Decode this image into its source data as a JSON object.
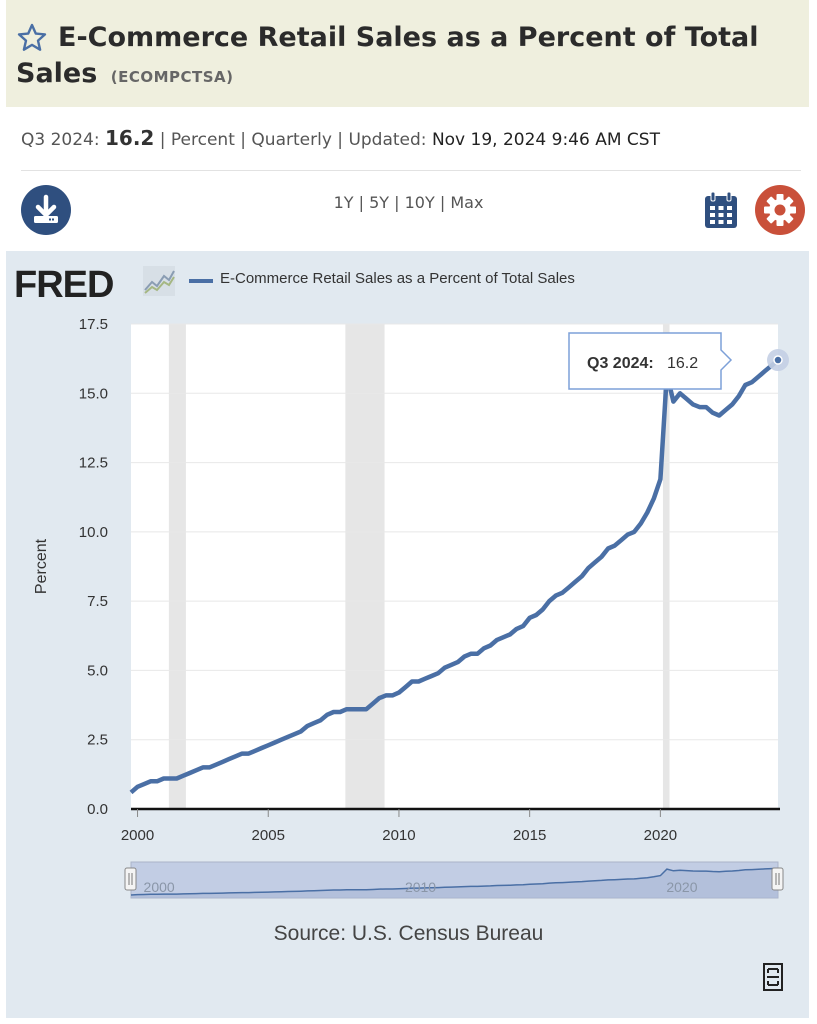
{
  "header": {
    "title": "E-Commerce Retail Sales as a Percent of Total Sales",
    "series_id": "(ECOMPCTSA)"
  },
  "meta": {
    "period": "Q3 2024:",
    "value": "16.2",
    "units": "Percent",
    "frequency": "Quarterly",
    "updated_label": "Updated:",
    "updated": "Nov 19, 2024 9:46 AM CST",
    "sep": "|"
  },
  "controls": {
    "download_icon": "download-icon",
    "ranges": [
      "1Y",
      "5Y",
      "10Y",
      "Max"
    ],
    "calendar_icon": "calendar-icon",
    "settings_icon": "gear-icon"
  },
  "chart_header": {
    "logo": "FRED",
    "legend": "E-Commerce Retail Sales as a Percent of Total Sales"
  },
  "source": "Source: U.S. Census Bureau",
  "colors": {
    "series": "#4a6fa5",
    "recession": "#e6e6e6",
    "panel": "#e1e9f0",
    "title_band": "#efefde",
    "download": "#2f4f7f",
    "settings": "#c9503a"
  },
  "chart_data": {
    "type": "line",
    "title": "E-Commerce Retail Sales as a Percent of Total Sales",
    "ylabel": "Percent",
    "xlabel": "",
    "ylim": [
      0,
      17.5
    ],
    "xlim": [
      1999.75,
      2024.5
    ],
    "yticks": [
      "0.0",
      "2.5",
      "5.0",
      "7.5",
      "10.0",
      "12.5",
      "15.0",
      "17.5"
    ],
    "xticks": [
      "2000",
      "2005",
      "2010",
      "2015",
      "2020"
    ],
    "navigator_labels": [
      "2000",
      "2010",
      "2020"
    ],
    "recessions": [
      [
        2001.2,
        2001.85
      ],
      [
        2007.95,
        2009.45
      ],
      [
        2020.1,
        2020.35
      ]
    ],
    "tooltip": {
      "label": "Q3 2024:",
      "value": "16.2"
    },
    "grid": true,
    "legend": "top",
    "series": [
      {
        "name": "E-Commerce Retail Sales as a Percent of Total Sales",
        "x": [
          1999.75,
          2000.0,
          2000.25,
          2000.5,
          2000.75,
          2001.0,
          2001.25,
          2001.5,
          2001.75,
          2002.0,
          2002.25,
          2002.5,
          2002.75,
          2003.0,
          2003.25,
          2003.5,
          2003.75,
          2004.0,
          2004.25,
          2004.5,
          2004.75,
          2005.0,
          2005.25,
          2005.5,
          2005.75,
          2006.0,
          2006.25,
          2006.5,
          2006.75,
          2007.0,
          2007.25,
          2007.5,
          2007.75,
          2008.0,
          2008.25,
          2008.5,
          2008.75,
          2009.0,
          2009.25,
          2009.5,
          2009.75,
          2010.0,
          2010.25,
          2010.5,
          2010.75,
          2011.0,
          2011.25,
          2011.5,
          2011.75,
          2012.0,
          2012.25,
          2012.5,
          2012.75,
          2013.0,
          2013.25,
          2013.5,
          2013.75,
          2014.0,
          2014.25,
          2014.5,
          2014.75,
          2015.0,
          2015.25,
          2015.5,
          2015.75,
          2016.0,
          2016.25,
          2016.5,
          2016.75,
          2017.0,
          2017.25,
          2017.5,
          2017.75,
          2018.0,
          2018.25,
          2018.5,
          2018.75,
          2019.0,
          2019.25,
          2019.5,
          2019.75,
          2020.0,
          2020.25,
          2020.5,
          2020.75,
          2021.0,
          2021.25,
          2021.5,
          2021.75,
          2022.0,
          2022.25,
          2022.5,
          2022.75,
          2023.0,
          2023.25,
          2023.5,
          2023.75,
          2024.0,
          2024.25,
          2024.5
        ],
        "values": [
          0.6,
          0.8,
          0.9,
          1.0,
          1.0,
          1.1,
          1.1,
          1.1,
          1.2,
          1.3,
          1.4,
          1.5,
          1.5,
          1.6,
          1.7,
          1.8,
          1.9,
          2.0,
          2.0,
          2.1,
          2.2,
          2.3,
          2.4,
          2.5,
          2.6,
          2.7,
          2.8,
          3.0,
          3.1,
          3.2,
          3.4,
          3.5,
          3.5,
          3.6,
          3.6,
          3.6,
          3.6,
          3.8,
          4.0,
          4.1,
          4.1,
          4.2,
          4.4,
          4.6,
          4.6,
          4.7,
          4.8,
          4.9,
          5.1,
          5.2,
          5.3,
          5.5,
          5.6,
          5.6,
          5.8,
          5.9,
          6.1,
          6.2,
          6.3,
          6.5,
          6.6,
          6.9,
          7.0,
          7.2,
          7.5,
          7.7,
          7.8,
          8.0,
          8.2,
          8.4,
          8.7,
          8.9,
          9.1,
          9.4,
          9.5,
          9.7,
          9.9,
          10.0,
          10.3,
          10.7,
          11.2,
          11.9,
          15.7,
          14.7,
          15.0,
          14.8,
          14.6,
          14.5,
          14.5,
          14.3,
          14.2,
          14.4,
          14.6,
          14.9,
          15.3,
          15.4,
          15.6,
          15.8,
          16.0,
          16.2
        ]
      }
    ]
  }
}
